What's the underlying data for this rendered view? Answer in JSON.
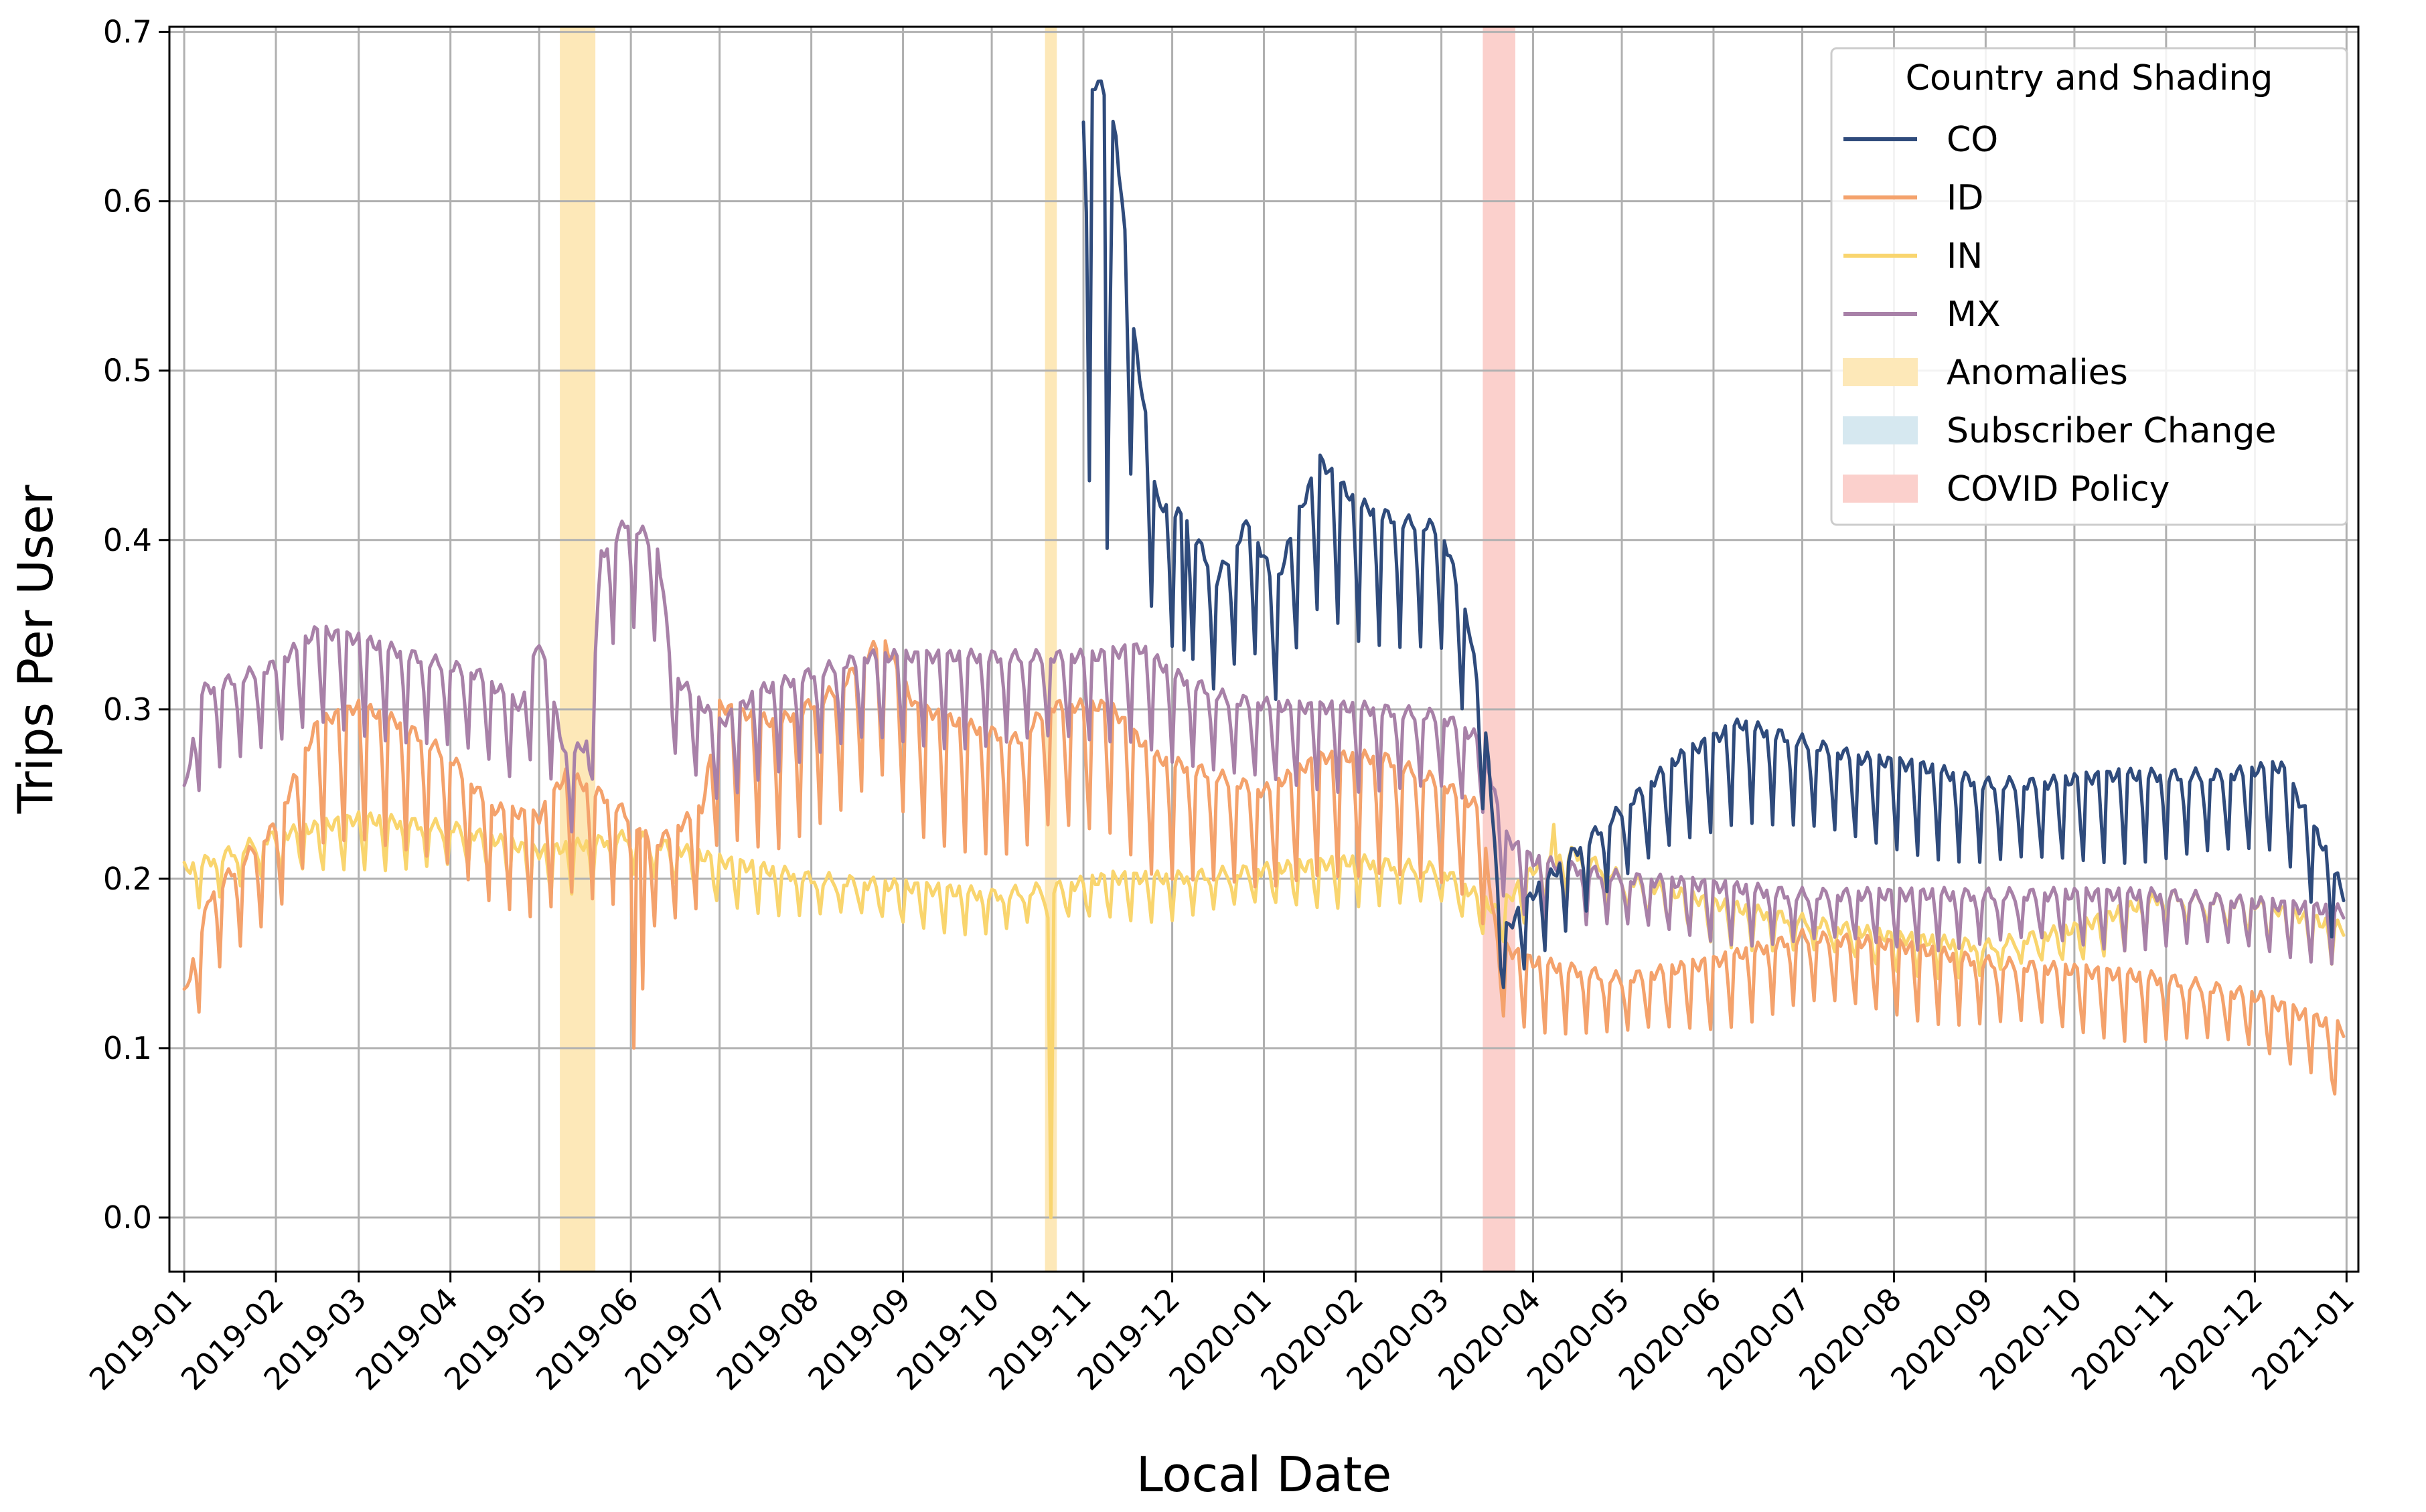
{
  "chart_data": {
    "type": "line",
    "title": "",
    "xlabel": "Local Date",
    "ylabel": "Trips Per User",
    "xlim": [
      "2018-12-27",
      "2021-01-05"
    ],
    "ylim": [
      -0.032,
      0.703
    ],
    "grid": true,
    "x_tick_labels": [
      "2019-01",
      "2019-02",
      "2019-03",
      "2019-04",
      "2019-05",
      "2019-06",
      "2019-07",
      "2019-08",
      "2019-09",
      "2019-10",
      "2019-11",
      "2019-12",
      "2020-01",
      "2020-02",
      "2020-03",
      "2020-04",
      "2020-05",
      "2020-06",
      "2020-07",
      "2020-08",
      "2020-09",
      "2020-10",
      "2020-11",
      "2020-12",
      "2021-01"
    ],
    "y_ticks": [
      0.0,
      0.1,
      0.2,
      0.3,
      0.4,
      0.5,
      0.6,
      0.7
    ],
    "y_tick_labels": [
      "0.0",
      "0.1",
      "0.2",
      "0.3",
      "0.4",
      "0.5",
      "0.6",
      "0.7"
    ],
    "legend": {
      "title": "Country and Shading",
      "position": "top-right"
    },
    "series": [
      {
        "name": "CO",
        "color": "#2f4b7c",
        "weekly_dip": 0.3,
        "x_start": "2019-11-01",
        "x_end": "2020-12-31",
        "points": [
          [
            "2019-11-01",
            0.645
          ],
          [
            "2019-11-06",
            0.67
          ],
          [
            "2019-11-12",
            0.635
          ],
          [
            "2019-11-18",
            0.52
          ],
          [
            "2019-11-26",
            0.42
          ],
          [
            "2019-12-06",
            0.41
          ],
          [
            "2019-12-16",
            0.375
          ],
          [
            "2019-12-27",
            0.41
          ],
          [
            "2020-01-05",
            0.37
          ],
          [
            "2020-01-12",
            0.41
          ],
          [
            "2020-01-20",
            0.445
          ],
          [
            "2020-02-01",
            0.42
          ],
          [
            "2020-02-15",
            0.41
          ],
          [
            "2020-03-01",
            0.405
          ],
          [
            "2020-03-10",
            0.35
          ],
          [
            "2020-03-17",
            0.27
          ],
          [
            "2020-03-21",
            0.165
          ],
          [
            "2020-04-01",
            0.19
          ],
          [
            "2020-04-15",
            0.215
          ],
          [
            "2020-05-01",
            0.24
          ],
          [
            "2020-05-20",
            0.27
          ],
          [
            "2020-06-10",
            0.29
          ],
          [
            "2020-07-01",
            0.28
          ],
          [
            "2020-07-20",
            0.27
          ],
          [
            "2020-08-10",
            0.265
          ],
          [
            "2020-09-01",
            0.255
          ],
          [
            "2020-09-20",
            0.255
          ],
          [
            "2020-10-15",
            0.26
          ],
          [
            "2020-11-01",
            0.26
          ],
          [
            "2020-11-20",
            0.26
          ],
          [
            "2020-12-10",
            0.265
          ],
          [
            "2020-12-25",
            0.215
          ],
          [
            "2020-12-31",
            0.19
          ]
        ],
        "events": [
          [
            "2019-11-03",
            0.435
          ],
          [
            "2019-11-09",
            0.395
          ],
          [
            "2019-12-05",
            0.335
          ]
        ]
      },
      {
        "name": "ID",
        "color": "#f4a26c",
        "weekly_dip": 0.4,
        "x_start": "2019-01-01",
        "x_end": "2020-12-31",
        "points": [
          [
            "2019-01-01",
            0.13
          ],
          [
            "2019-01-10",
            0.19
          ],
          [
            "2019-02-01",
            0.23
          ],
          [
            "2019-02-15",
            0.29
          ],
          [
            "2019-03-01",
            0.3
          ],
          [
            "2019-03-15",
            0.29
          ],
          [
            "2019-04-01",
            0.27
          ],
          [
            "2019-04-15",
            0.24
          ],
          [
            "2019-05-01",
            0.235
          ],
          [
            "2019-05-10",
            0.26
          ],
          [
            "2019-05-25",
            0.245
          ],
          [
            "2019-06-10",
            0.22
          ],
          [
            "2019-06-25",
            0.24
          ],
          [
            "2019-07-01",
            0.3
          ],
          [
            "2019-07-20",
            0.29
          ],
          [
            "2019-08-10",
            0.31
          ],
          [
            "2019-08-25",
            0.34
          ],
          [
            "2019-09-05",
            0.3
          ],
          [
            "2019-09-20",
            0.29
          ],
          [
            "2019-10-10",
            0.28
          ],
          [
            "2019-10-20",
            0.3
          ],
          [
            "2019-11-10",
            0.3
          ],
          [
            "2019-11-25",
            0.27
          ],
          [
            "2019-12-15",
            0.26
          ],
          [
            "2020-01-01",
            0.25
          ],
          [
            "2020-01-20",
            0.27
          ],
          [
            "2020-02-10",
            0.27
          ],
          [
            "2020-03-01",
            0.255
          ],
          [
            "2020-03-14",
            0.24
          ],
          [
            "2020-03-20",
            0.16
          ],
          [
            "2020-04-01",
            0.15
          ],
          [
            "2020-05-01",
            0.14
          ],
          [
            "2020-06-01",
            0.15
          ],
          [
            "2020-07-01",
            0.165
          ],
          [
            "2020-08-01",
            0.16
          ],
          [
            "2020-09-01",
            0.15
          ],
          [
            "2020-10-01",
            0.145
          ],
          [
            "2020-11-01",
            0.14
          ],
          [
            "2020-12-01",
            0.13
          ],
          [
            "2020-12-31",
            0.11
          ]
        ],
        "events": [
          [
            "2019-06-02",
            0.1
          ],
          [
            "2019-06-05",
            0.135
          ],
          [
            "2020-12-28",
            0.073
          ]
        ]
      },
      {
        "name": "IN",
        "color": "#f9d56e",
        "weekly_dip": 0.18,
        "x_start": "2019-01-01",
        "x_end": "2020-12-31",
        "points": [
          [
            "2019-01-01",
            0.205
          ],
          [
            "2019-02-01",
            0.225
          ],
          [
            "2019-03-01",
            0.235
          ],
          [
            "2019-04-01",
            0.23
          ],
          [
            "2019-05-01",
            0.215
          ],
          [
            "2019-06-01",
            0.225
          ],
          [
            "2019-07-01",
            0.21
          ],
          [
            "2019-08-01",
            0.2
          ],
          [
            "2019-09-01",
            0.195
          ],
          [
            "2019-10-01",
            0.19
          ],
          [
            "2019-10-25",
            0.195
          ],
          [
            "2019-11-10",
            0.2
          ],
          [
            "2019-12-01",
            0.2
          ],
          [
            "2020-01-01",
            0.205
          ],
          [
            "2020-02-01",
            0.21
          ],
          [
            "2020-03-01",
            0.205
          ],
          [
            "2020-03-20",
            0.18
          ],
          [
            "2020-04-01",
            0.205
          ],
          [
            "2020-04-15",
            0.215
          ],
          [
            "2020-05-01",
            0.2
          ],
          [
            "2020-06-01",
            0.185
          ],
          [
            "2020-07-01",
            0.175
          ],
          [
            "2020-08-01",
            0.165
          ],
          [
            "2020-09-01",
            0.16
          ],
          [
            "2020-10-01",
            0.17
          ],
          [
            "2020-11-01",
            0.19
          ],
          [
            "2020-12-01",
            0.185
          ],
          [
            "2020-12-31",
            0.17
          ]
        ],
        "events": [
          [
            "2019-10-21",
            0.0
          ],
          [
            "2020-04-08",
            0.232
          ]
        ]
      },
      {
        "name": "MX",
        "color": "#a881a8",
        "weekly_dip": 0.25,
        "x_start": "2019-01-01",
        "x_end": "2020-12-31",
        "points": [
          [
            "2019-01-01",
            0.25
          ],
          [
            "2019-01-07",
            0.31
          ],
          [
            "2019-02-01",
            0.325
          ],
          [
            "2019-02-15",
            0.345
          ],
          [
            "2019-03-01",
            0.34
          ],
          [
            "2019-03-20",
            0.33
          ],
          [
            "2019-04-10",
            0.32
          ],
          [
            "2019-04-25",
            0.3
          ],
          [
            "2019-05-01",
            0.34
          ],
          [
            "2019-05-10",
            0.27
          ],
          [
            "2019-05-18",
            0.28
          ],
          [
            "2019-05-22",
            0.39
          ],
          [
            "2019-05-31",
            0.41
          ],
          [
            "2019-06-10",
            0.395
          ],
          [
            "2019-06-15",
            0.32
          ],
          [
            "2019-07-01",
            0.29
          ],
          [
            "2019-07-15",
            0.31
          ],
          [
            "2019-08-01",
            0.32
          ],
          [
            "2019-08-20",
            0.33
          ],
          [
            "2019-09-10",
            0.33
          ],
          [
            "2019-10-01",
            0.33
          ],
          [
            "2019-10-21",
            0.33
          ],
          [
            "2019-11-05",
            0.33
          ],
          [
            "2019-11-20",
            0.335
          ],
          [
            "2019-12-01",
            0.32
          ],
          [
            "2019-12-20",
            0.305
          ],
          [
            "2020-01-10",
            0.3
          ],
          [
            "2020-02-01",
            0.3
          ],
          [
            "2020-03-01",
            0.295
          ],
          [
            "2020-03-15",
            0.28
          ],
          [
            "2020-03-22",
            0.225
          ],
          [
            "2020-04-01",
            0.21
          ],
          [
            "2020-05-01",
            0.2
          ],
          [
            "2020-06-01",
            0.195
          ],
          [
            "2020-07-01",
            0.19
          ],
          [
            "2020-08-01",
            0.19
          ],
          [
            "2020-09-01",
            0.19
          ],
          [
            "2020-10-01",
            0.19
          ],
          [
            "2020-11-01",
            0.19
          ],
          [
            "2020-12-01",
            0.185
          ],
          [
            "2020-12-31",
            0.18
          ]
        ],
        "events": []
      }
    ],
    "shaded_regions": [
      {
        "name": "Anomalies",
        "color": "#fde8b8",
        "spans": [
          [
            "2019-05-08",
            "2019-05-20"
          ],
          [
            "2019-10-19",
            "2019-10-23"
          ]
        ]
      },
      {
        "name": "Subscriber Change",
        "color": "#d6e8f0",
        "spans": []
      },
      {
        "name": "COVID Policy",
        "color": "#fbd0cc",
        "spans": [
          [
            "2020-03-15",
            "2020-03-26"
          ]
        ]
      }
    ]
  }
}
